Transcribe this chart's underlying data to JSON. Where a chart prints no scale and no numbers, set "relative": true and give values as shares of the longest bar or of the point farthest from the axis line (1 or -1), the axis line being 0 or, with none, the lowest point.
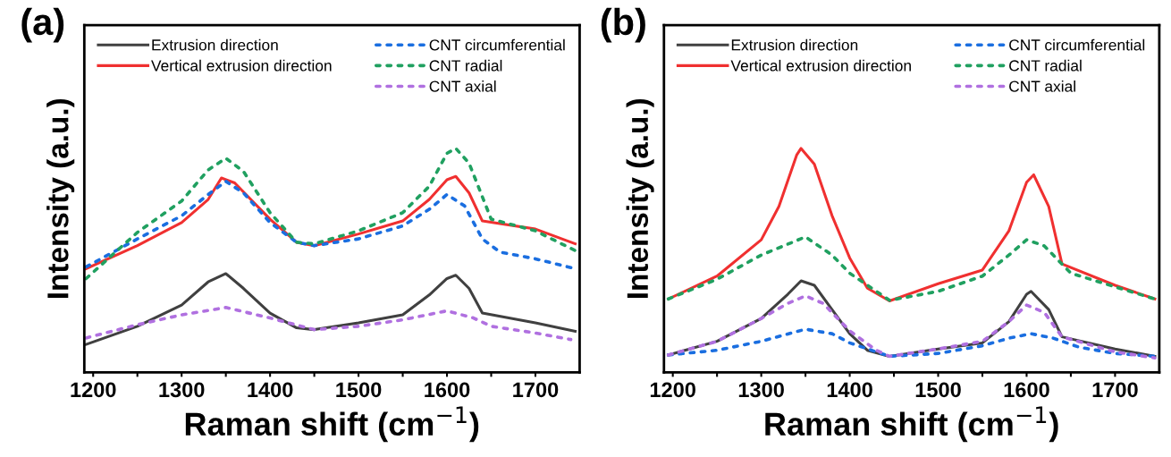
{
  "chart_data": [
    {
      "type": "line",
      "title": "(a)",
      "xlabel": "Raman shift (cm$^{−1}$)",
      "ylabel": "Intensity (a.u.)",
      "relative": true,
      "xlim": [
        1190,
        1750
      ],
      "xticks": [
        1200,
        {
          "value": 1250,
          "label": null
        },
        1300,
        {
          "value": 1350,
          "label": null
        },
        1400,
        {
          "value": 1450,
          "label": null
        },
        1500,
        {
          "value": 1550,
          "label": null
        },
        1600,
        {
          "value": 1650,
          "label": null
        },
        1700
      ],
      "grid": false,
      "legend": "top",
      "tick_labels": "x",
      "series": [
        {
          "name": "Extrusion direction",
          "color": "#404040",
          "line_style": "solid",
          "x": [
            1192,
            1250,
            1300,
            1330,
            1350,
            1370,
            1400,
            1430,
            1450,
            1500,
            1550,
            1580,
            1600,
            1610,
            1625,
            1640,
            1700,
            1745
          ],
          "values": [
            0.125,
            0.206,
            0.301,
            0.404,
            0.441,
            0.375,
            0.265,
            0.199,
            0.191,
            0.221,
            0.257,
            0.346,
            0.419,
            0.434,
            0.375,
            0.265,
            0.221,
            0.184
          ]
        },
        {
          "name": "Vertical extrusion direction",
          "color": "#f03030",
          "line_style": "solid",
          "x": [
            1192,
            1250,
            1300,
            1330,
            1345,
            1360,
            1400,
            1430,
            1450,
            1500,
            1550,
            1580,
            1600,
            1610,
            1625,
            1640,
            1700,
            1745
          ],
          "values": [
            0.463,
            0.566,
            0.669,
            0.772,
            0.868,
            0.846,
            0.684,
            0.581,
            0.566,
            0.618,
            0.676,
            0.772,
            0.86,
            0.875,
            0.801,
            0.676,
            0.64,
            0.574
          ]
        },
        {
          "name": "CNT circumferential",
          "color": "#1a6ee0",
          "line_style": "dotted",
          "x": [
            1192,
            1250,
            1300,
            1330,
            1350,
            1370,
            1400,
            1430,
            1450,
            1500,
            1550,
            1580,
            1600,
            1620,
            1640,
            1660,
            1700,
            1745
          ],
          "values": [
            0.471,
            0.596,
            0.699,
            0.794,
            0.853,
            0.801,
            0.669,
            0.581,
            0.566,
            0.596,
            0.654,
            0.728,
            0.794,
            0.743,
            0.596,
            0.537,
            0.507,
            0.463
          ]
        },
        {
          "name": "CNT radial",
          "color": "#20a060",
          "line_style": "dotted",
          "x": [
            1192,
            1250,
            1300,
            1330,
            1350,
            1370,
            1400,
            1430,
            1450,
            1500,
            1550,
            1580,
            1600,
            1610,
            1625,
            1650,
            1700,
            1745
          ],
          "values": [
            0.419,
            0.625,
            0.765,
            0.904,
            0.956,
            0.897,
            0.713,
            0.581,
            0.574,
            0.632,
            0.713,
            0.831,
            0.978,
            1.0,
            0.934,
            0.684,
            0.632,
            0.544
          ]
        },
        {
          "name": "CNT axial",
          "color": "#b070e0",
          "line_style": "dotted",
          "x": [
            1192,
            1250,
            1300,
            1350,
            1400,
            1450,
            1500,
            1550,
            1600,
            1630,
            1650,
            1700,
            1740
          ],
          "values": [
            0.154,
            0.213,
            0.257,
            0.29,
            0.243,
            0.191,
            0.206,
            0.235,
            0.275,
            0.243,
            0.206,
            0.176,
            0.147
          ]
        }
      ]
    },
    {
      "type": "line",
      "title": "(b)",
      "xlabel": "Raman shift (cm$^{−1}$)",
      "ylabel": "Intensity (a.u.)",
      "relative": true,
      "xlim": [
        1190,
        1750
      ],
      "xticks": [
        1200,
        {
          "value": 1250,
          "label": null
        },
        1300,
        {
          "value": 1350,
          "label": null
        },
        1400,
        {
          "value": 1450,
          "label": null
        },
        1500,
        {
          "value": 1550,
          "label": null
        },
        1600,
        {
          "value": 1650,
          "label": null
        },
        1700
      ],
      "grid": false,
      "legend": "top",
      "tick_labels": "x",
      "series": [
        {
          "name": "Extrusion direction",
          "color": "#404040",
          "line_style": "solid",
          "x": [
            1195,
            1250,
            1300,
            1330,
            1345,
            1360,
            1380,
            1400,
            1420,
            1445,
            1500,
            1550,
            1580,
            1600,
            1605,
            1625,
            1640,
            1700,
            1745
          ],
          "values": [
            0.078,
            0.139,
            0.241,
            0.349,
            0.409,
            0.389,
            0.281,
            0.173,
            0.099,
            0.072,
            0.105,
            0.132,
            0.227,
            0.349,
            0.362,
            0.281,
            0.159,
            0.105,
            0.072
          ]
        },
        {
          "name": "Vertical extrusion direction",
          "color": "#f03030",
          "line_style": "solid",
          "x": [
            1195,
            1250,
            1300,
            1320,
            1340,
            1345,
            1360,
            1380,
            1400,
            1420,
            1445,
            1500,
            1550,
            1580,
            1600,
            1608,
            1625,
            1640,
            1700,
            1745
          ],
          "values": [
            0.328,
            0.43,
            0.592,
            0.741,
            0.97,
            1.0,
            0.93,
            0.7,
            0.511,
            0.376,
            0.319,
            0.396,
            0.457,
            0.632,
            0.849,
            0.882,
            0.741,
            0.484,
            0.389,
            0.328
          ]
        },
        {
          "name": "CNT circumferential",
          "color": "#1a6ee0",
          "line_style": "dotted",
          "x": [
            1195,
            1250,
            1300,
            1350,
            1380,
            1400,
            1445,
            1500,
            1550,
            1580,
            1605,
            1630,
            1660,
            1700,
            1745
          ],
          "values": [
            0.078,
            0.099,
            0.139,
            0.193,
            0.173,
            0.132,
            0.072,
            0.085,
            0.119,
            0.153,
            0.173,
            0.153,
            0.112,
            0.085,
            0.072
          ]
        },
        {
          "name": "CNT radial",
          "color": "#20a060",
          "line_style": "dotted",
          "x": [
            1195,
            1250,
            1300,
            1350,
            1380,
            1400,
            1445,
            1500,
            1550,
            1580,
            1600,
            1620,
            1650,
            1700,
            1745
          ],
          "values": [
            0.328,
            0.416,
            0.524,
            0.605,
            0.524,
            0.443,
            0.322,
            0.362,
            0.43,
            0.524,
            0.592,
            0.565,
            0.443,
            0.382,
            0.328
          ]
        },
        {
          "name": "CNT axial",
          "color": "#b070e0",
          "line_style": "dotted",
          "x": [
            1195,
            1250,
            1300,
            1330,
            1350,
            1370,
            1400,
            1430,
            1445,
            1500,
            1550,
            1580,
            1600,
            1620,
            1640,
            1700,
            1745
          ],
          "values": [
            0.078,
            0.139,
            0.241,
            0.308,
            0.342,
            0.308,
            0.186,
            0.099,
            0.072,
            0.105,
            0.139,
            0.227,
            0.301,
            0.268,
            0.159,
            0.092,
            0.065
          ]
        }
      ]
    }
  ]
}
